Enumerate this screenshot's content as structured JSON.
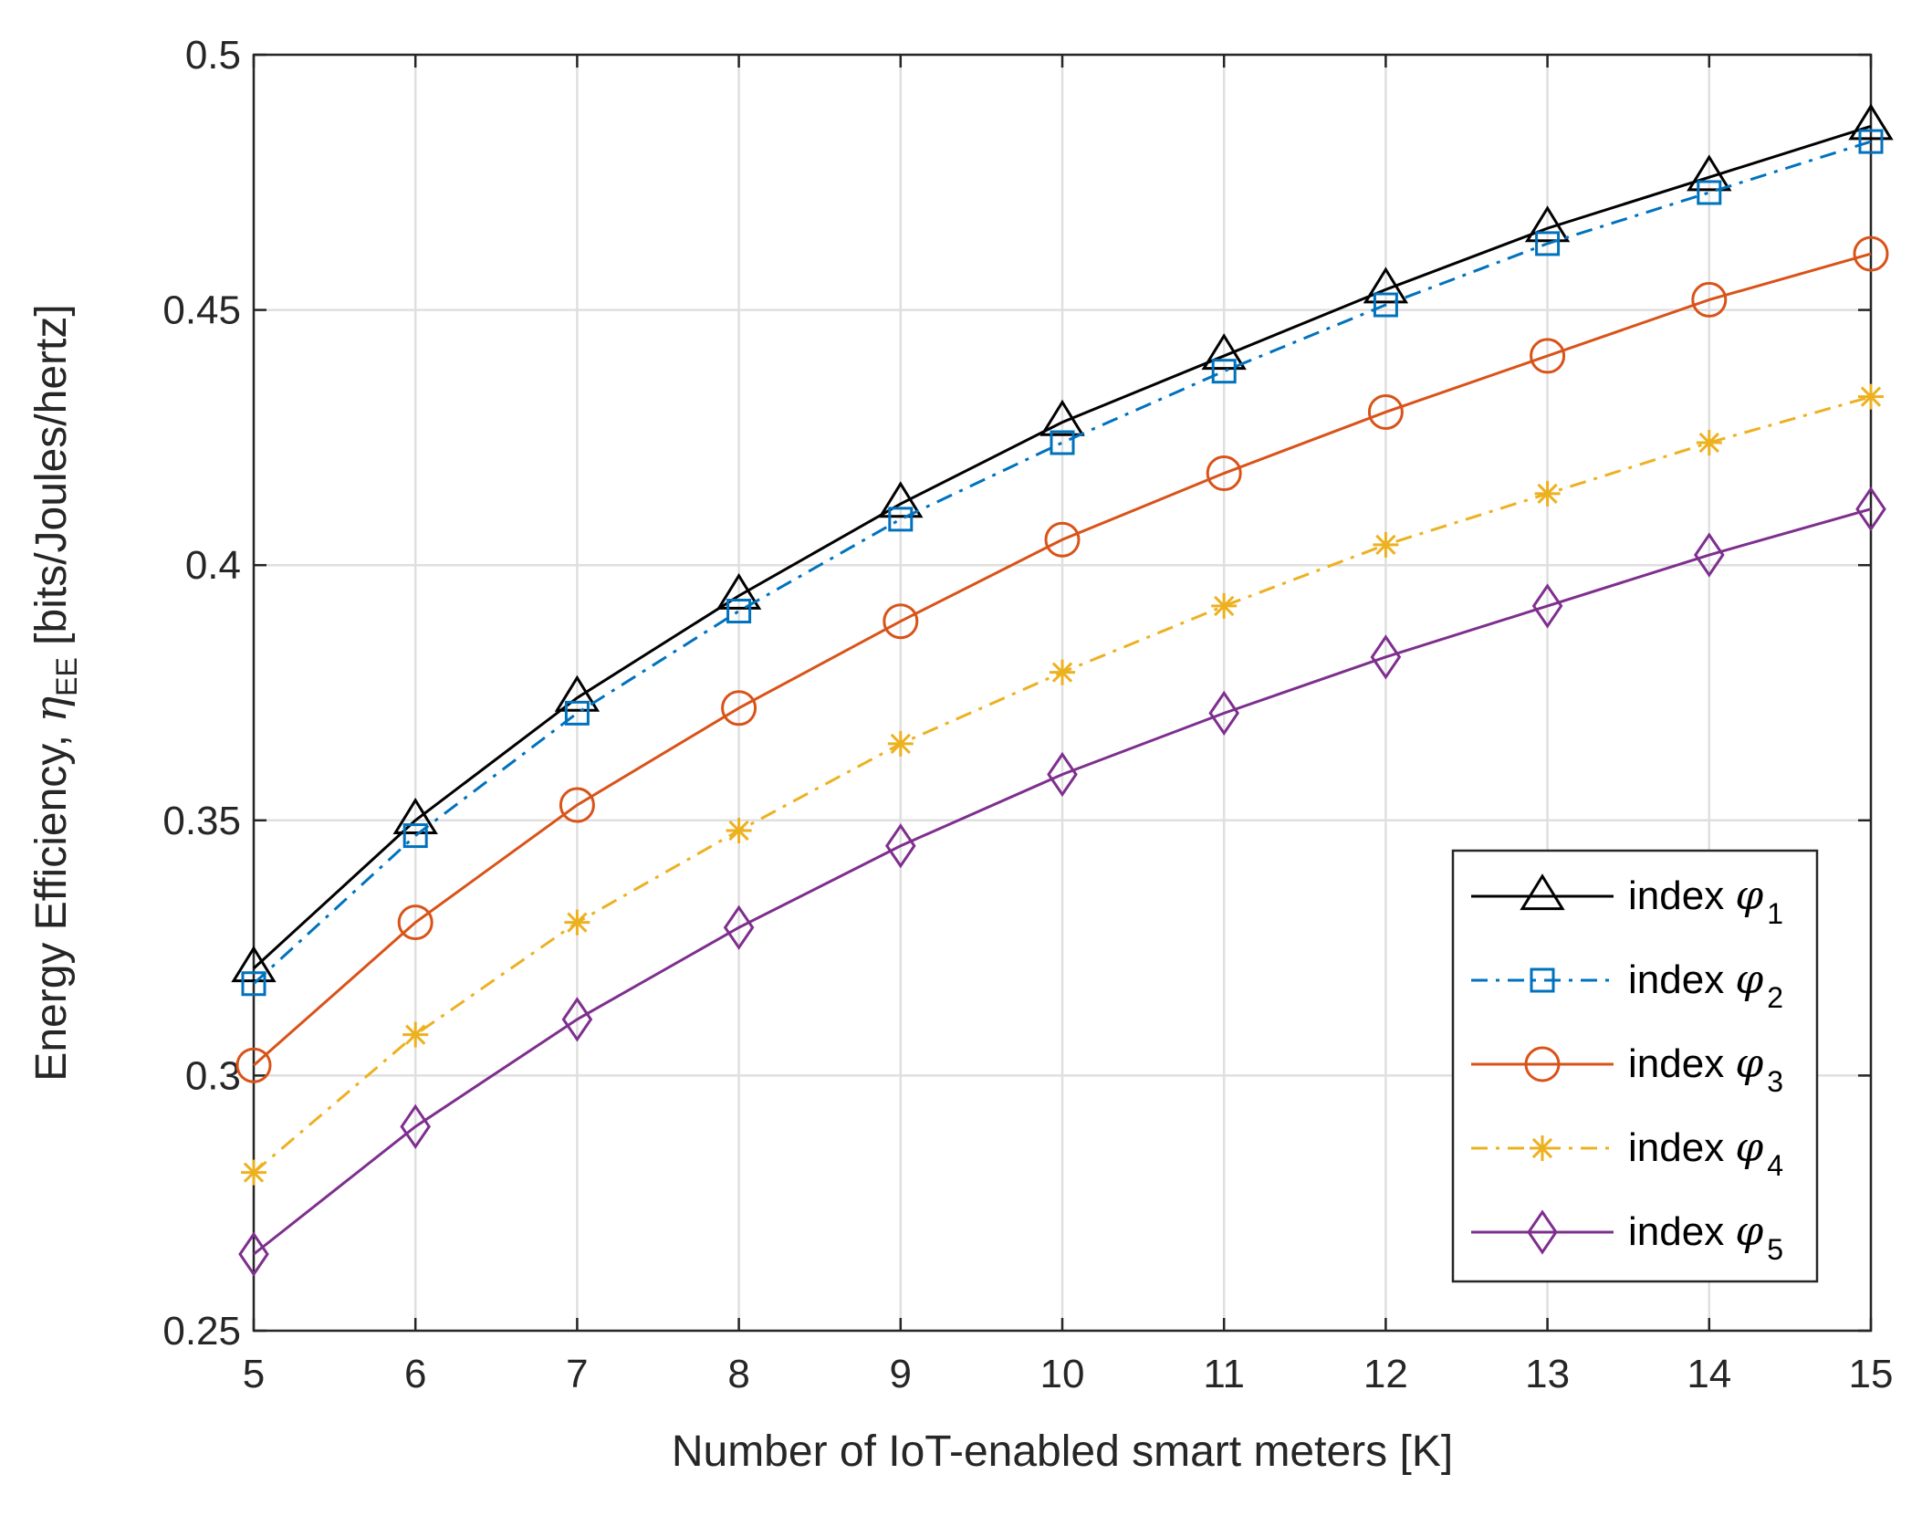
{
  "chart_data": {
    "type": "line",
    "title": "",
    "xlabel": "Number of IoT-enabled smart meters [K]",
    "ylabel": {
      "prefix": "Energy Efficiency, ",
      "symbol": "η",
      "subscript": "EE",
      "suffix": " [bits/Joules/hertz]"
    },
    "xlim": [
      5,
      15
    ],
    "ylim": [
      0.25,
      0.5
    ],
    "x": [
      5,
      6,
      7,
      8,
      9,
      10,
      11,
      12,
      13,
      14,
      15
    ],
    "xticks": [
      "5",
      "6",
      "7",
      "8",
      "9",
      "10",
      "11",
      "12",
      "13",
      "14",
      "15"
    ],
    "yticks": [
      "0.25",
      "0.3",
      "0.35",
      "0.4",
      "0.45",
      "0.5"
    ],
    "grid": true,
    "legend_position": "bottom-right",
    "series": [
      {
        "name": "index φ1",
        "label": "index ",
        "symbol": "φ",
        "subscript": "1",
        "color": "#000000",
        "marker": "triangle",
        "linestyle": "solid",
        "values": [
          0.321,
          0.35,
          0.374,
          0.394,
          0.412,
          0.428,
          0.441,
          0.454,
          0.466,
          0.476,
          0.486
        ]
      },
      {
        "name": "index φ2",
        "label": "index ",
        "symbol": "φ",
        "subscript": "2",
        "color": "#0072BD",
        "marker": "square",
        "linestyle": "dashdot",
        "values": [
          0.318,
          0.347,
          0.371,
          0.391,
          0.409,
          0.424,
          0.438,
          0.451,
          0.463,
          0.473,
          0.483
        ]
      },
      {
        "name": "index φ3",
        "label": "index ",
        "symbol": "φ",
        "subscript": "3",
        "color": "#D95319",
        "marker": "circle",
        "linestyle": "solid",
        "values": [
          0.302,
          0.33,
          0.353,
          0.372,
          0.389,
          0.405,
          0.418,
          0.43,
          0.441,
          0.452,
          0.461
        ]
      },
      {
        "name": "index φ4",
        "label": "index ",
        "symbol": "φ",
        "subscript": "4",
        "color": "#EDB120",
        "marker": "asterisk",
        "linestyle": "dashdot",
        "values": [
          0.281,
          0.308,
          0.33,
          0.348,
          0.365,
          0.379,
          0.392,
          0.404,
          0.414,
          0.424,
          0.433
        ]
      },
      {
        "name": "index φ5",
        "label": "index ",
        "symbol": "φ",
        "subscript": "5",
        "color": "#7E2F8E",
        "marker": "diamond",
        "linestyle": "solid",
        "values": [
          0.265,
          0.29,
          0.311,
          0.329,
          0.345,
          0.359,
          0.371,
          0.382,
          0.392,
          0.402,
          0.411
        ]
      }
    ]
  }
}
